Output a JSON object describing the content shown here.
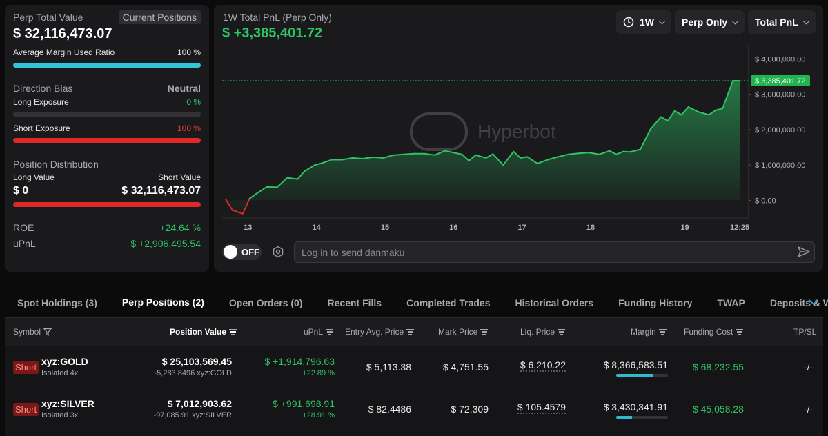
{
  "summary": {
    "perp_total_label": "Perp Total Value",
    "current_positions_tag": "Current Positions",
    "perp_total_value": "$ 32,116,473.07",
    "avg_margin_label": "Average Margin Used Ratio",
    "avg_margin_value": "100 %",
    "avg_margin_ratio": 1.0,
    "direction_bias_label": "Direction Bias",
    "direction_bias_value": "Neutral",
    "long_exposure_label": "Long Exposure",
    "long_exposure_value": "0 %",
    "long_exposure_ratio": 0.0,
    "short_exposure_label": "Short Exposure",
    "short_exposure_value": "100 %",
    "short_exposure_ratio": 1.0,
    "position_dist_label": "Position Distribution",
    "long_value_label": "Long Value",
    "short_value_label": "Short Value",
    "long_value": "$ 0",
    "short_value": "$ 32,116,473.07",
    "roe_label": "ROE",
    "roe_value": "+24.64 %",
    "upnl_label": "uPnL",
    "upnl_value": "$ +2,906,495.54"
  },
  "chart_panel": {
    "title": "1W Total PnL (Perp Only)",
    "total_pnl": "$ +3,385,401.72",
    "timeframe": "1W",
    "scope": "Perp Only",
    "metric": "Total PnL",
    "watermark": "Hyperbot",
    "toggle_label": "OFF",
    "danmaku_placeholder": "Log in to send danmaku"
  },
  "chart_data": {
    "type": "area",
    "title": "1W Total PnL (Perp Only)",
    "y_tick_labels": [
      "$ 4,000,000.00",
      "$ 3,000,000.00",
      "$ 2,000,000.00",
      "$ 1,000,000.00",
      "$ 0.00"
    ],
    "y_ticks": [
      4000000,
      3000000,
      2000000,
      1000000,
      0
    ],
    "x_tick_labels": [
      "13",
      "14",
      "15",
      "16",
      "17",
      "18",
      "19",
      "12:25"
    ],
    "x_ticks": [
      12.625,
      13.625,
      14.625,
      15.625,
      16.625,
      17.625,
      19.0,
      19.8
    ],
    "ylim": [
      -500000,
      4400000
    ],
    "xlim": [
      12.25,
      19.93
    ],
    "current_value_label": "$ 3,385,401.72",
    "current_value": 3385401.72,
    "colors": {
      "positive": "#2ec464",
      "negative": "#e02828"
    },
    "x": [
      12.3,
      12.4,
      12.55,
      12.65,
      12.75,
      12.9,
      13.05,
      13.2,
      13.35,
      13.45,
      13.6,
      13.7,
      13.85,
      14.0,
      14.15,
      14.3,
      14.45,
      14.6,
      14.75,
      14.9,
      15.05,
      15.2,
      15.35,
      15.5,
      15.65,
      15.75,
      15.85,
      15.95,
      16.1,
      16.2,
      16.35,
      16.5,
      16.6,
      16.7,
      16.85,
      17.0,
      17.15,
      17.3,
      17.45,
      17.6,
      17.75,
      17.9,
      18.0,
      18.1,
      18.2,
      18.35,
      18.5,
      18.65,
      18.75,
      18.85,
      18.95,
      19.05,
      19.2,
      19.35,
      19.45,
      19.55,
      19.7,
      19.8
    ],
    "y": [
      30000,
      -280000,
      -380000,
      50000,
      190000,
      380000,
      370000,
      640000,
      600000,
      820000,
      1000000,
      1050000,
      1150000,
      1150000,
      1200000,
      1180000,
      1220000,
      1200000,
      1280000,
      1300000,
      1320000,
      1320000,
      1280000,
      1400000,
      1340000,
      1300000,
      1120000,
      1280000,
      1200000,
      1310000,
      1000000,
      1380000,
      1200000,
      1230000,
      1040000,
      1150000,
      1230000,
      1300000,
      1330000,
      1350000,
      1300000,
      1400000,
      1300000,
      1380000,
      1370000,
      1440000,
      2020000,
      2360000,
      2250000,
      2530000,
      2420000,
      2640000,
      2500000,
      2420000,
      2550000,
      2600000,
      3385401.72,
      3385401.72
    ]
  },
  "tabs": [
    {
      "label": "Spot Holdings (3)",
      "active": false
    },
    {
      "label": "Perp Positions (2)",
      "active": true
    },
    {
      "label": "Open Orders (0)",
      "active": false
    },
    {
      "label": "Recent Fills",
      "active": false
    },
    {
      "label": "Completed Trades",
      "active": false
    },
    {
      "label": "Historical Orders",
      "active": false
    },
    {
      "label": "Funding History",
      "active": false
    },
    {
      "label": "TWAP",
      "active": false
    },
    {
      "label": "Deposits & Withdraw",
      "active": false
    }
  ],
  "table": {
    "headers": {
      "symbol": "Symbol",
      "position_value": "Position Value",
      "upnl": "uPnL",
      "entry": "Entry Avg. Price",
      "mark": "Mark Price",
      "liq": "Liq. Price",
      "margin": "Margin",
      "funding": "Funding Cost",
      "tpsl": "TP/SL"
    },
    "rows": [
      {
        "side": "Short",
        "symbol": "xyz:GOLD",
        "mode": "Isolated 4x",
        "position_value": "$ 25,103,569.45",
        "position_size": "-5,283.8496 xyz:GOLD",
        "upnl": "$ +1,914,796.63",
        "upnl_pct": "+22.89 %",
        "entry": "$ 5,113.38",
        "mark": "$ 4,751.55",
        "liq": "$ 6,210.22",
        "margin": "$ 8,366,583.51",
        "margin_ratio": 0.72,
        "funding": "$ 68,232.55",
        "tpsl": "-/-"
      },
      {
        "side": "Short",
        "symbol": "xyz:SILVER",
        "mode": "Isolated 3x",
        "position_value": "$ 7,012,903.62",
        "position_size": "-97,085.91 xyz:SILVER",
        "upnl": "$ +991,698.91",
        "upnl_pct": "+28.91 %",
        "entry": "$ 82.4486",
        "mark": "$ 72.309",
        "liq": "$ 105.4579",
        "margin": "$ 3,430,341.91",
        "margin_ratio": 0.3,
        "funding": "$ 45,058.28",
        "tpsl": "-/-"
      }
    ]
  }
}
